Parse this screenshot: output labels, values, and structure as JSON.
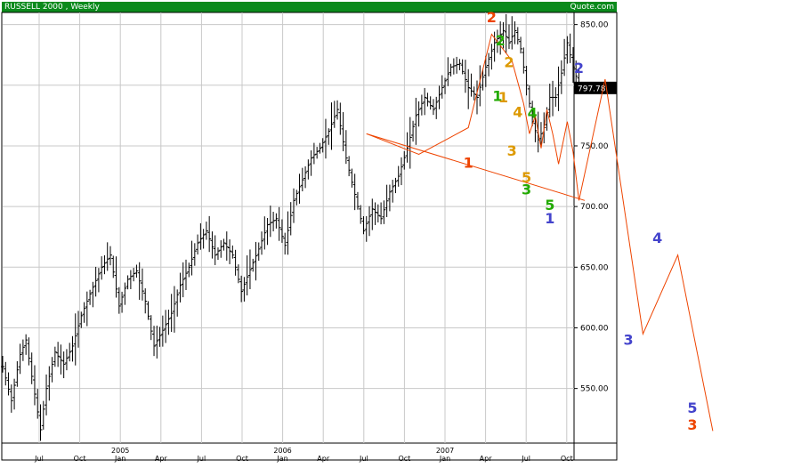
{
  "chart_data": {
    "type": "ohlc",
    "title": "RUSSELL 2000",
    "subtitle": ", Weekly",
    "source": "Quote.com",
    "last_price": "797.78",
    "xlabel": "",
    "ylabel": "",
    "ylim": [
      505,
      860
    ],
    "y_ticks": [
      "850.00",
      "800.00",
      "750.00",
      "700.00",
      "650.00",
      "600.00",
      "550.00"
    ],
    "x_ticks": [
      {
        "month": "Jul",
        "year": ""
      },
      {
        "month": "Oct",
        "year": ""
      },
      {
        "month": "Jan",
        "year": "2005"
      },
      {
        "month": "Apr",
        "year": ""
      },
      {
        "month": "Jul",
        "year": ""
      },
      {
        "month": "Oct",
        "year": ""
      },
      {
        "month": "Jan",
        "year": "2006"
      },
      {
        "month": "Apr",
        "year": ""
      },
      {
        "month": "Jul",
        "year": ""
      },
      {
        "month": "Oct",
        "year": ""
      },
      {
        "month": "Jan",
        "year": "2007"
      },
      {
        "month": "Apr",
        "year": ""
      },
      {
        "month": "Jul",
        "year": ""
      },
      {
        "month": "Oct",
        "year": ""
      }
    ],
    "price_path": [
      [
        0,
        568
      ],
      [
        3,
        540
      ],
      [
        6,
        578
      ],
      [
        8,
        590
      ],
      [
        10,
        560
      ],
      [
        13,
        516
      ],
      [
        15,
        550
      ],
      [
        18,
        580
      ],
      [
        21,
        570
      ],
      [
        24,
        585
      ],
      [
        27,
        610
      ],
      [
        30,
        628
      ],
      [
        34,
        650
      ],
      [
        37,
        660
      ],
      [
        40,
        618
      ],
      [
        43,
        640
      ],
      [
        46,
        647
      ],
      [
        49,
        622
      ],
      [
        52,
        585
      ],
      [
        55,
        598
      ],
      [
        58,
        612
      ],
      [
        61,
        635
      ],
      [
        64,
        650
      ],
      [
        67,
        670
      ],
      [
        70,
        680
      ],
      [
        73,
        660
      ],
      [
        76,
        670
      ],
      [
        79,
        660
      ],
      [
        82,
        630
      ],
      [
        85,
        648
      ],
      [
        88,
        665
      ],
      [
        91,
        685
      ],
      [
        94,
        690
      ],
      [
        97,
        668
      ],
      [
        100,
        705
      ],
      [
        103,
        722
      ],
      [
        106,
        740
      ],
      [
        109,
        748
      ],
      [
        112,
        762
      ],
      [
        115,
        780
      ],
      [
        118,
        740
      ],
      [
        121,
        710
      ],
      [
        124,
        680
      ],
      [
        127,
        698
      ],
      [
        130,
        690
      ],
      [
        133,
        712
      ],
      [
        136,
        725
      ],
      [
        139,
        748
      ],
      [
        142,
        775
      ],
      [
        145,
        790
      ],
      [
        148,
        780
      ],
      [
        151,
        798
      ],
      [
        154,
        815
      ],
      [
        157,
        818
      ],
      [
        160,
        798
      ],
      [
        163,
        790
      ],
      [
        166,
        815
      ],
      [
        169,
        835
      ],
      [
        172,
        845
      ],
      [
        174,
        835
      ],
      [
        176,
        845
      ],
      [
        178,
        830
      ],
      [
        180,
        800
      ],
      [
        182,
        770
      ],
      [
        184,
        755
      ],
      [
        186,
        765
      ],
      [
        188,
        790
      ],
      [
        190,
        790
      ],
      [
        192,
        810
      ],
      [
        194,
        835
      ],
      [
        196,
        815
      ],
      [
        198,
        800
      ]
    ],
    "projection": [
      {
        "x": 125,
        "y": 760
      },
      {
        "x": 143,
        "y": 743
      },
      {
        "x": 160,
        "y": 765
      },
      {
        "x": 168,
        "y": 842
      },
      {
        "x": 175,
        "y": 820
      },
      {
        "x": 179,
        "y": 785
      },
      {
        "x": 181,
        "y": 760
      },
      {
        "x": 183,
        "y": 775
      },
      {
        "x": 185,
        "y": 748
      },
      {
        "x": 187,
        "y": 780
      },
      {
        "x": 189,
        "y": 760
      },
      {
        "x": 191,
        "y": 735
      },
      {
        "x": 194,
        "y": 770
      },
      {
        "x": 196,
        "y": 745
      },
      {
        "x": 198,
        "y": 705
      },
      {
        "x": 207,
        "y": 805
      },
      {
        "x": 220,
        "y": 595
      },
      {
        "x": 232,
        "y": 660
      },
      {
        "x": 244,
        "y": 515
      }
    ],
    "trendline": [
      {
        "x": 125,
        "y": 760
      },
      {
        "x": 200,
        "y": 705
      }
    ],
    "wave_labels": [
      {
        "text": "2",
        "x": 168,
        "y": 852,
        "color": "#ee4400"
      },
      {
        "text": "1",
        "x": 160,
        "y": 732,
        "color": "#ee4400"
      },
      {
        "text": "2",
        "x": 171,
        "y": 833,
        "color": "#22aa00"
      },
      {
        "text": "1",
        "x": 170,
        "y": 787,
        "color": "#22aa00"
      },
      {
        "text": "1",
        "x": 172,
        "y": 786,
        "color": "#dd9900"
      },
      {
        "text": "2",
        "x": 174,
        "y": 815,
        "color": "#dd9900"
      },
      {
        "text": "4",
        "x": 177,
        "y": 774,
        "color": "#dd9900"
      },
      {
        "text": "3",
        "x": 175,
        "y": 742,
        "color": "#dd9900"
      },
      {
        "text": "5",
        "x": 180,
        "y": 720,
        "color": "#dd9900"
      },
      {
        "text": "4",
        "x": 182,
        "y": 773,
        "color": "#22aa00"
      },
      {
        "text": "3",
        "x": 180,
        "y": 710,
        "color": "#22aa00"
      },
      {
        "text": "5",
        "x": 188,
        "y": 697,
        "color": "#22aa00"
      },
      {
        "text": "1",
        "x": 188,
        "y": 686,
        "color": "#4444cc"
      },
      {
        "text": "2",
        "x": 198,
        "y": 810,
        "color": "#4444cc"
      },
      {
        "text": "3",
        "x": 215,
        "y": 586,
        "color": "#4444cc"
      },
      {
        "text": "4",
        "x": 225,
        "y": 670,
        "color": "#4444cc"
      },
      {
        "text": "5",
        "x": 237,
        "y": 530,
        "color": "#4444cc"
      },
      {
        "text": "3",
        "x": 237,
        "y": 516,
        "color": "#ee4400"
      }
    ]
  }
}
